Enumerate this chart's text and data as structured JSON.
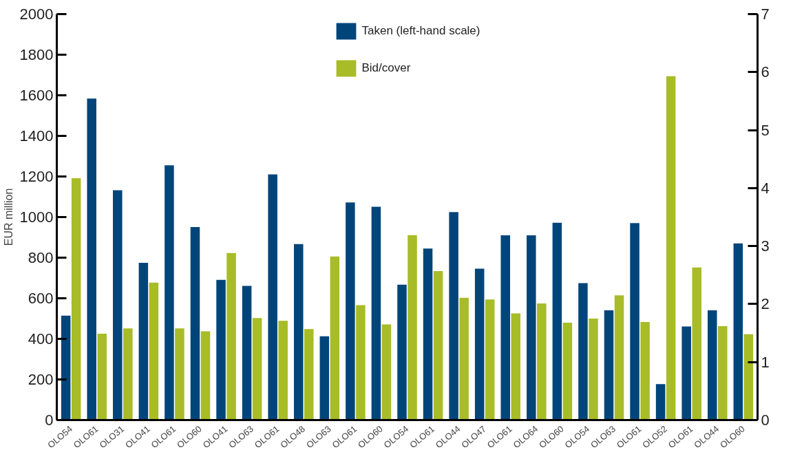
{
  "chart_data": {
    "type": "bar",
    "ylabel": "EUR million",
    "categories": [
      "OLO54",
      "OLO61",
      "OLO31",
      "OLO41",
      "OLO61",
      "OLO60",
      "OLO41",
      "OLO63",
      "OLO61",
      "OLO48",
      "OLO63",
      "OLO61",
      "OLO60",
      "OLO54",
      "OLO61",
      "OLO44",
      "OLO47",
      "OLO61",
      "OLO64",
      "OLO60",
      "OLO54",
      "OLO63",
      "OLO61",
      "OLO52",
      "OLO61",
      "OLO44",
      "OLO60"
    ],
    "series": [
      {
        "name": "Taken (left-hand scale)",
        "color": "#00457a",
        "values": [
          514,
          1584,
          1132,
          775,
          1255,
          951,
          691,
          661,
          1210,
          867,
          413,
          1072,
          1051,
          667,
          845,
          1025,
          746,
          910,
          910,
          972,
          675,
          541,
          970,
          177,
          461,
          541,
          870
        ]
      },
      {
        "name": "Bid/cover",
        "color": "#a8bc28",
        "axis": "y2",
        "values": [
          4.17,
          1.49,
          1.58,
          2.37,
          1.58,
          1.53,
          2.88,
          1.76,
          1.71,
          1.57,
          2.82,
          1.98,
          1.65,
          3.19,
          2.57,
          2.11,
          2.08,
          1.84,
          2.01,
          1.68,
          1.75,
          2.15,
          1.69,
          5.93,
          2.63,
          1.62,
          1.48
        ]
      }
    ],
    "ylim": [
      0,
      2000
    ],
    "yticks": [
      0,
      200,
      400,
      600,
      800,
      1000,
      1200,
      1400,
      1600,
      1800,
      2000
    ],
    "y2lim": [
      0,
      7
    ],
    "y2ticks": [
      0,
      1,
      2,
      3,
      4,
      5,
      6,
      7
    ],
    "legend": "top",
    "grid": false
  }
}
